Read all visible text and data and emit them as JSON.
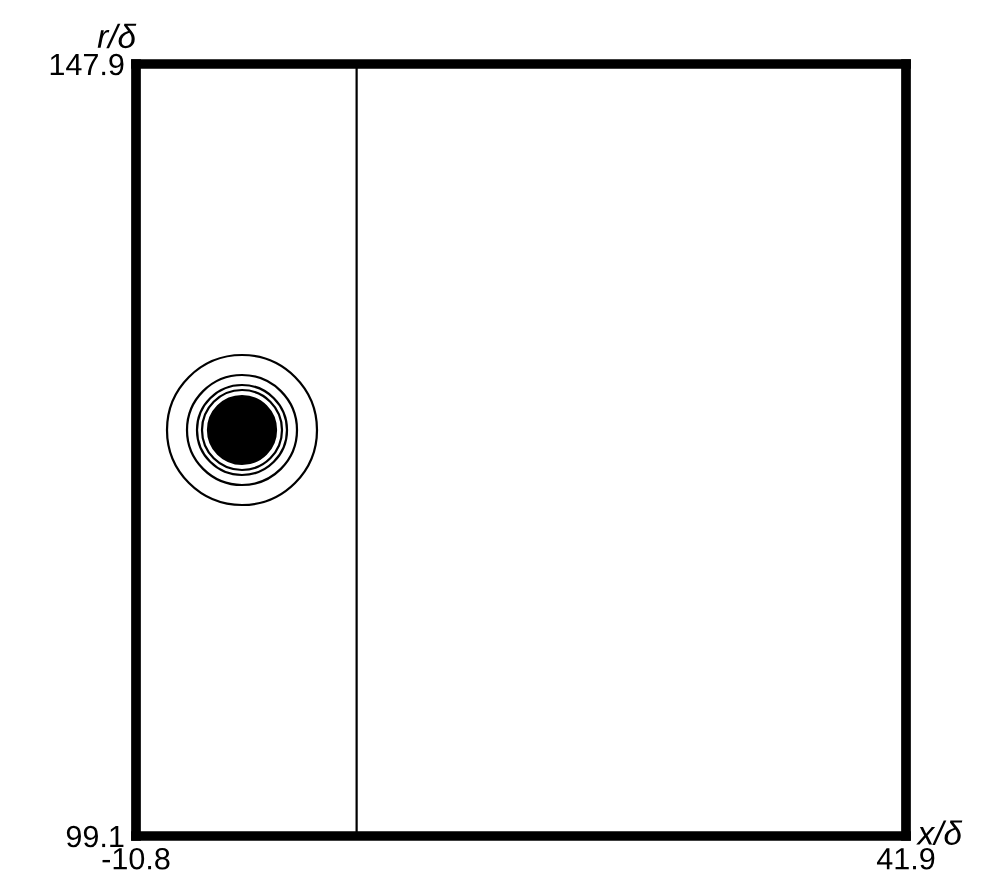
{
  "chart_data": {
    "type": "line",
    "xlabel": "x/δ",
    "ylabel": "r/δ",
    "xlim": [
      -10.8,
      41.9
    ],
    "ylim": [
      99.1,
      147.9
    ],
    "xticks": [
      -10.8,
      41.9
    ],
    "yticks": [
      99.1,
      147.9
    ],
    "ref_lines": [
      {
        "axis": "x",
        "value": 4.3,
        "color": "#000000"
      }
    ]
  }
}
